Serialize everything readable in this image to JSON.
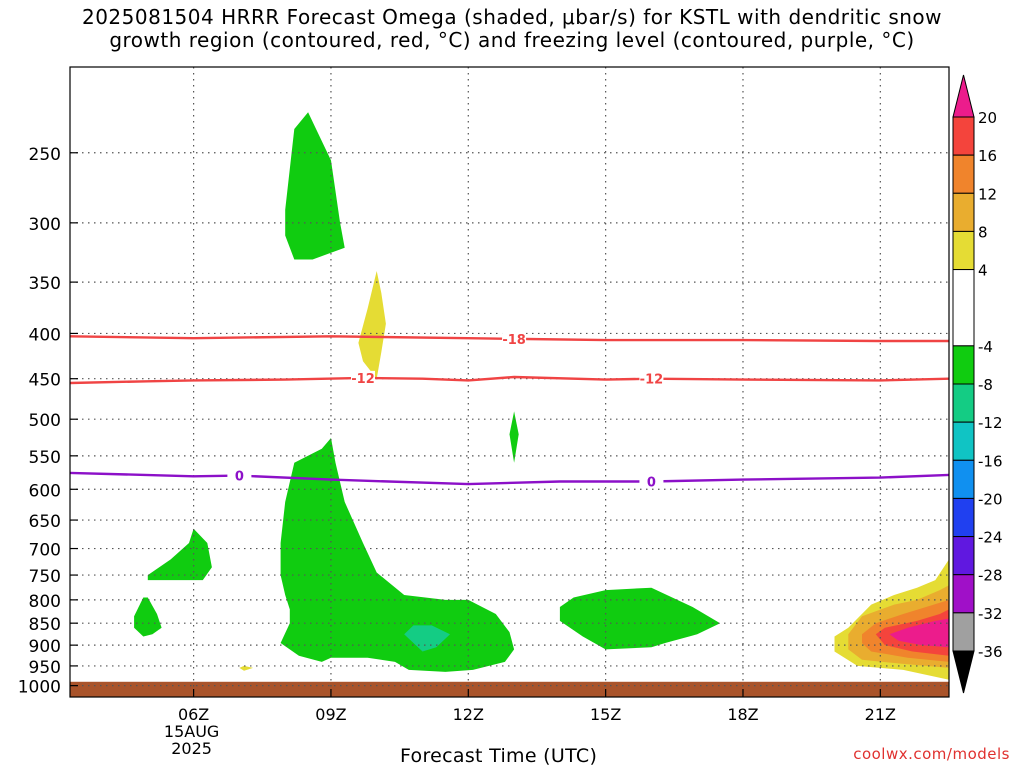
{
  "title": {
    "line1": "2025081504 HRRR Forecast Omega (shaded, μbar/s) for KSTL with dendritic snow",
    "line2": "growth region (contoured, red, °C) and freezing level (contoured, purple, °C)"
  },
  "watermark": "coolwx.com/models",
  "chart_data": {
    "type": "contour",
    "title": "2025081504 HRRR Forecast Omega (shaded, μbar/s) for KSTL with dendritic snow growth region (contoured, red, °C) and freezing level (contoured, purple, °C)",
    "xlabel": "Forecast Time (UTC)",
    "ylabel": "",
    "x_range_hours_utc": [
      3.3,
      22.5
    ],
    "y_range_hpa": [
      1030,
      200
    ],
    "y_scale": "log",
    "x_ticks": [
      {
        "hour": 6,
        "label": "06Z",
        "sub": [
          "15AUG",
          "2025"
        ]
      },
      {
        "hour": 9,
        "label": "09Z"
      },
      {
        "hour": 12,
        "label": "12Z"
      },
      {
        "hour": 15,
        "label": "15Z"
      },
      {
        "hour": 18,
        "label": "18Z"
      },
      {
        "hour": 21,
        "label": "21Z"
      }
    ],
    "y_ticks": [
      250,
      300,
      350,
      400,
      450,
      500,
      550,
      600,
      650,
      700,
      750,
      800,
      850,
      900,
      950,
      1000
    ],
    "grid": true,
    "ground_level_hpa": 990,
    "colorbar": {
      "position": "right",
      "levels": [
        20,
        16,
        12,
        8,
        4,
        -4,
        -8,
        -12,
        -16,
        -20,
        -24,
        -28,
        -32,
        -36
      ],
      "bands": [
        {
          "from": 20,
          "to": 24,
          "color": "#ec1c8c"
        },
        {
          "from": 16,
          "to": 20,
          "color": "#f4443c"
        },
        {
          "from": 12,
          "to": 16,
          "color": "#f0842c"
        },
        {
          "from": 8,
          "to": 12,
          "color": "#e9ad2f"
        },
        {
          "from": 4,
          "to": 8,
          "color": "#e5dc34"
        },
        {
          "from": -4,
          "to": 4,
          "color": "#ffffff"
        },
        {
          "from": -8,
          "to": -4,
          "color": "#10cc10"
        },
        {
          "from": -12,
          "to": -8,
          "color": "#14cc84"
        },
        {
          "from": -16,
          "to": -12,
          "color": "#10c4c4"
        },
        {
          "from": -20,
          "to": -16,
          "color": "#1090f0"
        },
        {
          "from": -24,
          "to": -20,
          "color": "#2040f0"
        },
        {
          "from": -28,
          "to": -24,
          "color": "#6018e0"
        },
        {
          "from": -32,
          "to": -28,
          "color": "#a010c8"
        },
        {
          "from": -36,
          "to": -32,
          "color": "#a0a0a0"
        },
        {
          "from": -40,
          "to": -36,
          "color": "#000000"
        }
      ]
    },
    "contours": [
      {
        "name": "-18",
        "color": "#f04444",
        "label_hour": 13.0,
        "points": [
          [
            3.3,
            403
          ],
          [
            6,
            405
          ],
          [
            9,
            403
          ],
          [
            12,
            405
          ],
          [
            15,
            407
          ],
          [
            18,
            407
          ],
          [
            21,
            408
          ],
          [
            22.5,
            408
          ]
        ]
      },
      {
        "name": "-12",
        "color": "#f04444",
        "label_hours": [
          9.7,
          16.0
        ],
        "points": [
          [
            3.3,
            455
          ],
          [
            5,
            453
          ],
          [
            6,
            452
          ],
          [
            8,
            451
          ],
          [
            9.7,
            449
          ],
          [
            11,
            450
          ],
          [
            12,
            452
          ],
          [
            13,
            448
          ],
          [
            15,
            451
          ],
          [
            16,
            450
          ],
          [
            18,
            451
          ],
          [
            21,
            452
          ],
          [
            22.5,
            450
          ]
        ]
      },
      {
        "name": "0",
        "color": "#8c10c8",
        "label_hours": [
          7.0,
          16.0
        ],
        "points": [
          [
            3.3,
            575
          ],
          [
            6,
            580
          ],
          [
            7,
            579
          ],
          [
            9,
            585
          ],
          [
            12,
            592
          ],
          [
            14,
            588
          ],
          [
            16,
            588
          ],
          [
            18,
            585
          ],
          [
            21,
            582
          ],
          [
            22.5,
            578
          ]
        ]
      }
    ],
    "shaded_regions": [
      {
        "value_band": "-8..-4",
        "color": "#10cc10",
        "points": [
          [
            8.0,
            290
          ],
          [
            8.2,
            235
          ],
          [
            8.5,
            225
          ],
          [
            9.0,
            255
          ],
          [
            9.2,
            300
          ],
          [
            9.3,
            320
          ],
          [
            8.6,
            330
          ],
          [
            8.2,
            330
          ],
          [
            8.0,
            310
          ]
        ]
      },
      {
        "value_band": "4..8",
        "color": "#e5dc34",
        "points": [
          [
            9.6,
            410
          ],
          [
            9.8,
            375
          ],
          [
            10.0,
            340
          ],
          [
            10.1,
            360
          ],
          [
            10.2,
            390
          ],
          [
            10.1,
            420
          ],
          [
            10.0,
            450
          ],
          [
            9.7,
            430
          ]
        ]
      },
      {
        "value_band": "-8..-4",
        "color": "#10cc10",
        "points": [
          [
            12.9,
            520
          ],
          [
            13.0,
            490
          ],
          [
            13.1,
            520
          ],
          [
            13.0,
            560
          ]
        ]
      },
      {
        "value_band": "-8..-4",
        "color": "#10cc10",
        "points": [
          [
            5.0,
            750
          ],
          [
            5.5,
            720
          ],
          [
            5.9,
            690
          ],
          [
            6.0,
            665
          ],
          [
            6.3,
            690
          ],
          [
            6.4,
            735
          ],
          [
            6.2,
            760
          ],
          [
            5.6,
            760
          ],
          [
            5.0,
            760
          ]
        ]
      },
      {
        "value_band": "-8..-4",
        "color": "#10cc10",
        "points": [
          [
            4.7,
            835
          ],
          [
            4.9,
            795
          ],
          [
            5.0,
            795
          ],
          [
            5.2,
            830
          ],
          [
            5.3,
            860
          ],
          [
            5.1,
            875
          ],
          [
            4.9,
            880
          ],
          [
            4.7,
            860
          ]
        ]
      },
      {
        "value_band": "4..8",
        "color": "#e5dc34",
        "points": [
          [
            7.0,
            955
          ],
          [
            7.1,
            950
          ],
          [
            7.3,
            955
          ],
          [
            7.1,
            962
          ]
        ]
      },
      {
        "value_band": "-8..-4",
        "color": "#10cc10",
        "points": [
          [
            7.9,
            690
          ],
          [
            8.0,
            620
          ],
          [
            8.2,
            560
          ],
          [
            8.8,
            540
          ],
          [
            9.0,
            525
          ],
          [
            9.1,
            560
          ],
          [
            9.3,
            620
          ],
          [
            9.7,
            690
          ],
          [
            10.0,
            745
          ],
          [
            10.6,
            790
          ],
          [
            11.5,
            800
          ],
          [
            12.0,
            800
          ],
          [
            12.6,
            830
          ],
          [
            12.9,
            870
          ],
          [
            13.0,
            910
          ],
          [
            12.8,
            940
          ],
          [
            12.1,
            960
          ],
          [
            11.5,
            965
          ],
          [
            10.7,
            960
          ],
          [
            10.4,
            940
          ],
          [
            9.8,
            930
          ],
          [
            9.4,
            930
          ],
          [
            9.0,
            930
          ],
          [
            8.8,
            940
          ],
          [
            8.3,
            925
          ],
          [
            7.9,
            895
          ],
          [
            8.1,
            850
          ],
          [
            8.1,
            820
          ],
          [
            8.0,
            790
          ],
          [
            7.9,
            750
          ]
        ]
      },
      {
        "value_band": "-12..-8",
        "color": "#14cc84",
        "points": [
          [
            10.6,
            875
          ],
          [
            10.8,
            855
          ],
          [
            11.2,
            855
          ],
          [
            11.6,
            875
          ],
          [
            11.3,
            905
          ],
          [
            11.0,
            915
          ]
        ]
      },
      {
        "value_band": "-8..-4",
        "color": "#10cc10",
        "points": [
          [
            14.0,
            815
          ],
          [
            14.3,
            795
          ],
          [
            15.0,
            780
          ],
          [
            16.0,
            775
          ],
          [
            16.9,
            815
          ],
          [
            17.5,
            850
          ],
          [
            17.0,
            875
          ],
          [
            16.3,
            895
          ],
          [
            16.0,
            905
          ],
          [
            15.0,
            910
          ],
          [
            14.5,
            880
          ],
          [
            14.0,
            845
          ]
        ]
      },
      {
        "value_band": "4..8",
        "color": "#e5dc34",
        "points": [
          [
            20.3,
            860
          ],
          [
            20.8,
            810
          ],
          [
            21.3,
            790
          ],
          [
            21.8,
            775
          ],
          [
            22.2,
            760
          ],
          [
            22.5,
            720
          ],
          [
            22.5,
            985
          ],
          [
            21.5,
            960
          ],
          [
            20.5,
            950
          ],
          [
            20.0,
            915
          ],
          [
            20.0,
            880
          ]
        ]
      },
      {
        "value_band": "8..12",
        "color": "#e9ad2f",
        "points": [
          [
            20.3,
            875
          ],
          [
            20.6,
            835
          ],
          [
            21.3,
            810
          ],
          [
            21.8,
            800
          ],
          [
            22.3,
            780
          ],
          [
            22.5,
            770
          ],
          [
            22.5,
            955
          ],
          [
            21.5,
            945
          ],
          [
            20.6,
            935
          ],
          [
            20.3,
            910
          ]
        ]
      },
      {
        "value_band": "12..16",
        "color": "#f0842c",
        "points": [
          [
            20.6,
            875
          ],
          [
            20.9,
            850
          ],
          [
            21.5,
            830
          ],
          [
            22.0,
            815
          ],
          [
            22.5,
            800
          ],
          [
            22.5,
            940
          ],
          [
            21.6,
            930
          ],
          [
            20.8,
            915
          ],
          [
            20.6,
            895
          ]
        ]
      },
      {
        "value_band": "16..20",
        "color": "#f4443c",
        "points": [
          [
            20.9,
            875
          ],
          [
            21.1,
            860
          ],
          [
            21.8,
            845
          ],
          [
            22.3,
            830
          ],
          [
            22.5,
            820
          ],
          [
            22.5,
            925
          ],
          [
            21.7,
            915
          ],
          [
            21.1,
            900
          ]
        ]
      },
      {
        "value_band": "20..24",
        "color": "#ec1c8c",
        "points": [
          [
            21.2,
            875
          ],
          [
            21.6,
            860
          ],
          [
            22.2,
            845
          ],
          [
            22.5,
            840
          ],
          [
            22.5,
            905
          ],
          [
            21.9,
            900
          ],
          [
            21.4,
            890
          ]
        ]
      }
    ]
  }
}
